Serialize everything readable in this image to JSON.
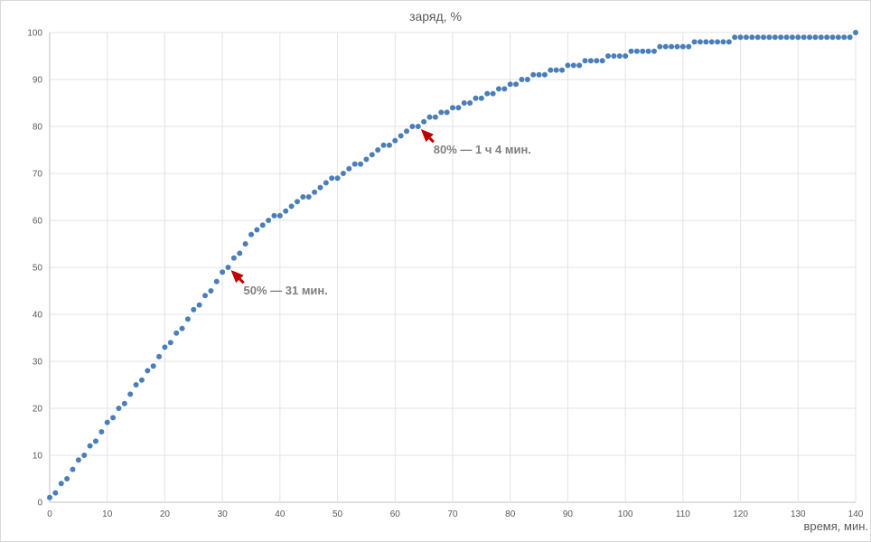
{
  "chart_data": {
    "type": "scatter",
    "title": "заряд, %",
    "xlabel": "время, мин.",
    "ylabel": "",
    "xlim": [
      0,
      140
    ],
    "ylim": [
      0,
      100
    ],
    "xticks": [
      0,
      10,
      20,
      30,
      40,
      50,
      60,
      70,
      80,
      90,
      100,
      110,
      120,
      130,
      140
    ],
    "yticks": [
      0,
      10,
      20,
      30,
      40,
      50,
      60,
      70,
      80,
      90,
      100
    ],
    "grid": true,
    "legend": "none",
    "series": [
      {
        "color": "#4a7ebb",
        "x": [
          0,
          1,
          2,
          3,
          4,
          5,
          6,
          7,
          8,
          9,
          10,
          11,
          12,
          13,
          14,
          15,
          16,
          17,
          18,
          19,
          20,
          21,
          22,
          23,
          24,
          25,
          26,
          27,
          28,
          29,
          30,
          31,
          32,
          33,
          34,
          35,
          36,
          37,
          38,
          39,
          40,
          41,
          42,
          43,
          44,
          45,
          46,
          47,
          48,
          49,
          50,
          51,
          52,
          53,
          54,
          55,
          56,
          57,
          58,
          59,
          60,
          61,
          62,
          63,
          64,
          65,
          66,
          67,
          68,
          69,
          70,
          71,
          72,
          73,
          74,
          75,
          76,
          77,
          78,
          79,
          80,
          81,
          82,
          83,
          84,
          85,
          86,
          87,
          88,
          89,
          90,
          91,
          92,
          93,
          94,
          95,
          96,
          97,
          98,
          99,
          100,
          101,
          102,
          103,
          104,
          105,
          106,
          107,
          108,
          109,
          110,
          111,
          112,
          113,
          114,
          115,
          116,
          117,
          118,
          119,
          120,
          121,
          122,
          123,
          124,
          125,
          126,
          127,
          128,
          129,
          130,
          131,
          132,
          133,
          134,
          135,
          136,
          137,
          138,
          139,
          140
        ],
        "y": [
          1,
          2,
          4,
          5,
          7,
          9,
          10,
          12,
          13,
          15,
          17,
          18,
          20,
          21,
          23,
          25,
          26,
          28,
          29,
          31,
          33,
          34,
          36,
          37,
          39,
          41,
          42,
          44,
          45,
          47,
          49,
          50,
          52,
          53,
          55,
          57,
          58,
          59,
          60,
          61,
          61,
          62,
          63,
          64,
          65,
          65,
          66,
          67,
          68,
          69,
          69,
          70,
          71,
          72,
          72,
          73,
          74,
          75,
          76,
          76,
          77,
          78,
          79,
          80,
          80,
          81,
          82,
          82,
          83,
          83,
          84,
          84,
          85,
          85,
          86,
          86,
          87,
          87,
          88,
          88,
          89,
          89,
          90,
          90,
          91,
          91,
          91,
          92,
          92,
          92,
          93,
          93,
          93,
          94,
          94,
          94,
          94,
          95,
          95,
          95,
          95,
          96,
          96,
          96,
          96,
          96,
          97,
          97,
          97,
          97,
          97,
          97,
          98,
          98,
          98,
          98,
          98,
          98,
          98,
          99,
          99,
          99,
          99,
          99,
          99,
          99,
          99,
          99,
          99,
          99,
          99,
          99,
          99,
          99,
          99,
          99,
          99,
          99,
          99,
          99,
          100
        ]
      }
    ],
    "annotations": [
      {
        "text": "50% — 31 мин.",
        "x": 31,
        "y": 50,
        "color": "#c00000"
      },
      {
        "text": "80% — 1 ч 4 мин.",
        "x": 64,
        "y": 80,
        "color": "#c00000"
      }
    ]
  }
}
